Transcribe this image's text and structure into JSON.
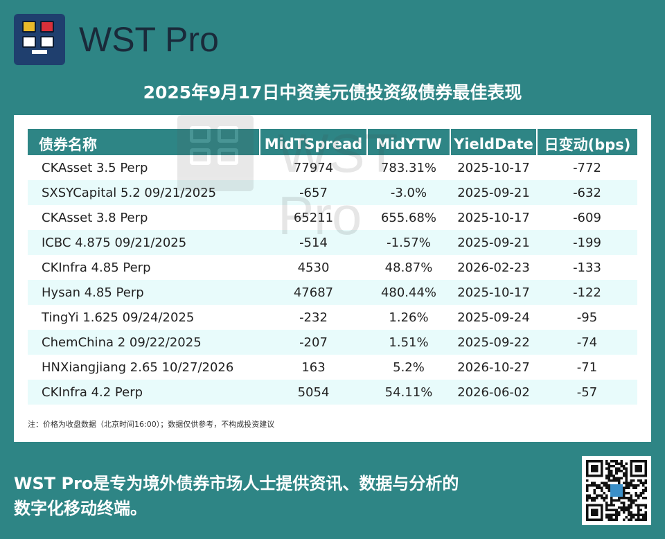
{
  "header": {
    "brand": "WST Pro",
    "logo_icon": "wst-pro-logo-icon"
  },
  "title": "2025年9月17日中资美元债投资级债券最佳表现",
  "table": {
    "columns": [
      "债券名称",
      "MidTSpread",
      "MidYTW",
      "YieldDate",
      "日变动(bps)"
    ],
    "rows": [
      [
        "CKAsset 3.5 Perp",
        "77974",
        "783.31%",
        "2025-10-17",
        "-772"
      ],
      [
        "SXSYCapital 5.2 09/21/2025",
        "-657",
        "-3.0%",
        "2025-09-21",
        "-632"
      ],
      [
        "CKAsset 3.8 Perp",
        "65211",
        "655.68%",
        "2025-10-17",
        "-609"
      ],
      [
        "ICBC 4.875 09/21/2025",
        "-514",
        "-1.57%",
        "2025-09-21",
        "-199"
      ],
      [
        "CKInfra 4.85 Perp",
        "4530",
        "48.87%",
        "2026-02-23",
        "-133"
      ],
      [
        "Hysan 4.85 Perp",
        "47687",
        "480.44%",
        "2025-10-17",
        "-122"
      ],
      [
        "TingYi 1.625 09/24/2025",
        "-232",
        "1.26%",
        "2025-09-24",
        "-95"
      ],
      [
        "ChemChina 2 09/22/2025",
        "-207",
        "1.51%",
        "2025-09-22",
        "-74"
      ],
      [
        "HNXiangjiang 2.65 10/27/2026",
        "163",
        "5.2%",
        "2026-10-27",
        "-71"
      ],
      [
        "CKInfra 4.2 Perp",
        "5054",
        "54.11%",
        "2026-06-02",
        "-57"
      ]
    ]
  },
  "note": "注：价格为收盘数据（北京时间16:00）；数据仅供参考，不构成投资建议",
  "watermark": {
    "text": "WST Pro",
    "icon": "wst-pro-watermark-icon"
  },
  "footer": {
    "line1": "WST Pro是专为境外债券市场人士提供资讯、数据与分析的",
    "line2": "数字化移动终端。"
  },
  "qr": {
    "icon": "qr-code-icon"
  },
  "colors": {
    "background": "#2e8585",
    "header_row": "#2e8585",
    "alt_row": "#e8fbfb",
    "panel": "#ffffff",
    "logo_blue": "#1f3f6e",
    "logo_yellow": "#e8b92a",
    "logo_red": "#d9303a"
  }
}
